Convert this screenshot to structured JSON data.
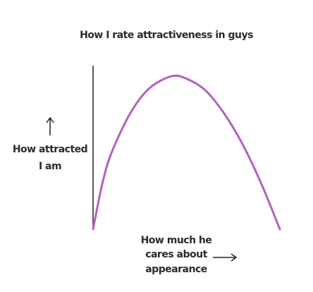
{
  "chart_data": {
    "type": "line",
    "title": "How I rate attractiveness in guys",
    "y_label": [
      "How attracted",
      "I am"
    ],
    "x_label": [
      "How much he",
      "cares about",
      "appearance"
    ],
    "x": [
      0,
      5,
      10,
      20,
      30,
      42,
      50,
      60,
      70,
      80,
      90,
      100
    ],
    "values": [
      0,
      28,
      47,
      71,
      86,
      93.5,
      92,
      85,
      71,
      52,
      28,
      0
    ],
    "color": "#b263bd",
    "xlim": [
      0,
      100
    ],
    "ylim": [
      0,
      100
    ],
    "grid": false
  }
}
